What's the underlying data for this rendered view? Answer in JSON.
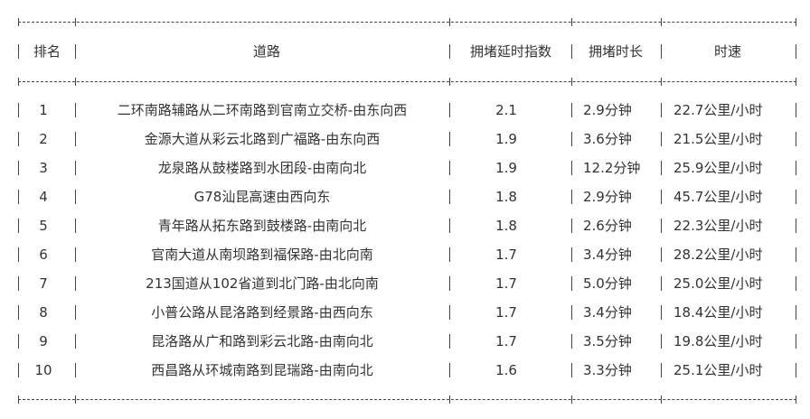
{
  "headers": [
    "排名",
    "道路",
    "拥堵延时指数",
    "拥堵时长",
    "时速"
  ],
  "rows": [
    {
      "rank": "1",
      "road": "二环南路辅路从二环南路到官南立交桥-由东向西",
      "index": "2.1",
      "duration": "2.9分钟",
      "speed": "22.7公里/小时"
    },
    {
      "rank": "2",
      "road": "金源大道从彩云北路到广福路-由东向西",
      "index": "1.9",
      "duration": "3.6分钟",
      "speed": "21.5公里/小时"
    },
    {
      "rank": "3",
      "road": "龙泉路从鼓楼路到水团段-由南向北",
      "index": "1.9",
      "duration": "12.2分钟",
      "speed": "25.9公里/小时"
    },
    {
      "rank": "4",
      "road": "G78汕昆高速由西向东",
      "index": "1.8",
      "duration": "2.9分钟",
      "speed": "45.7公里/小时"
    },
    {
      "rank": "5",
      "road": "青年路从拓东路到鼓楼路-由南向北",
      "index": "1.8",
      "duration": "2.6分钟",
      "speed": "22.3公里/小时"
    },
    {
      "rank": "6",
      "road": "官南大道从南坝路到福保路-由北向南",
      "index": "1.7",
      "duration": "3.4分钟",
      "speed": "28.2公里/小时"
    },
    {
      "rank": "7",
      "road": "213国道从102省道到北门路-由北向南",
      "index": "1.7",
      "duration": "5.0分钟",
      "speed": "25.0公里/小时"
    },
    {
      "rank": "8",
      "road": "小普公路从昆洛路到经景路-由西向东",
      "index": "1.7",
      "duration": "3.4分钟",
      "speed": "18.4公里/小时"
    },
    {
      "rank": "9",
      "road": "昆洛路从广和路到彩云北路-由南向北",
      "index": "1.7",
      "duration": "3.5分钟",
      "speed": "19.8公里/小时"
    },
    {
      "rank": "10",
      "road": "西昌路从环城南路到昆瑞路-由南向北",
      "index": "1.6",
      "duration": "3.3分钟",
      "speed": "25.1公里/小时"
    }
  ]
}
